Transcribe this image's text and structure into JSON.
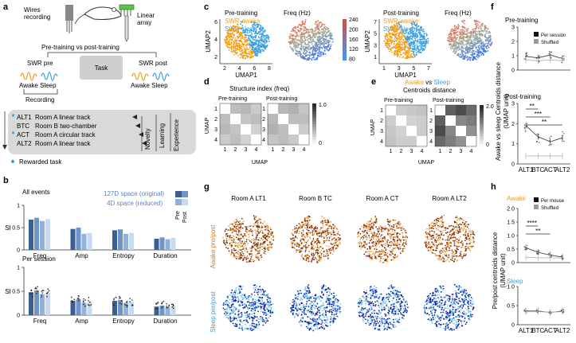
{
  "panel_labels": [
    "a",
    "b",
    "c",
    "d",
    "e",
    "f",
    "g",
    "h"
  ],
  "panel_a": {
    "wires_recording": "Wires\nrecording",
    "linear_array": "Linear\narray",
    "comparison": "Pre-training vs post-training",
    "swr_pre": "SWR pre",
    "swr_post": "SWR post",
    "task": "Task",
    "awake": "Awake",
    "sleep": "Sleep",
    "recording": "Recording",
    "sessions": [
      {
        "code": "ALT1",
        "desc": "Room A  linear track"
      },
      {
        "code": "BTC",
        "desc": "Room B two-chamber"
      },
      {
        "code": "ACT",
        "desc": "Room A circular track"
      },
      {
        "code": "ALT2",
        "desc": "Room A linear track"
      }
    ],
    "novelty": "Novelty",
    "learning": "Learning",
    "experience": "Experience",
    "rewarded": "Rewarded task"
  },
  "panel_b": {
    "all_events": "All events",
    "per_session": "Per session",
    "legend_127": "127D space (original)",
    "legend_4": "4D space (reduced)",
    "pre": "Pre",
    "post": "Post",
    "ylabel": "SI",
    "colors": {
      "orig_pre": "#3a5f95",
      "orig_post": "#6f95c8",
      "red_pre": "#8eb2dc",
      "red_post": "#c8daf1"
    }
  },
  "panel_c": {
    "titles": [
      "Pre-training",
      "Post-training"
    ],
    "swr_awake": "SWR-awake",
    "swr_sleep": "SWR-sleep",
    "freq": "Freq (Hz)",
    "xlabel": "UMAP1",
    "ylabel": "UMAP2",
    "colorbar_ticks": [
      "240",
      "200",
      "160",
      "120",
      "80"
    ],
    "x_ticks_pre": [
      "2",
      "4",
      "6",
      "8"
    ],
    "y_ticks_pre": [
      "2",
      "4",
      "6"
    ],
    "x_ticks_post": [
      "1",
      "3",
      "5",
      "7"
    ],
    "y_ticks_post": [
      "1",
      "3",
      "5",
      "7"
    ]
  },
  "panel_d": {
    "title": "Structure index (freq)",
    "sub_pre": "Pre-training",
    "sub_post": "Post-training",
    "axis": "UMAP",
    "ticks": [
      "1",
      "2",
      "3",
      "4"
    ],
    "cbar": [
      "1.0",
      "0"
    ]
  },
  "panel_e": {
    "awake": "Awake",
    "vs": " vs ",
    "sleep": "Sleep",
    "title": "Centroids distance",
    "sub_pre": "Pre-training",
    "sub_post": "Post-training",
    "axis": "UMAP",
    "ticks": [
      "1",
      "2",
      "3",
      "4"
    ],
    "cbar": [
      "2.0",
      "0"
    ]
  },
  "panel_f": {
    "pre_title": "Pre-training",
    "post_title": "Post-training",
    "legend_session": "Per session",
    "legend_shuffled": "Shuffled",
    "ylabel": "Awake vs sleep   Centroids distance",
    "yunit": "(UMAP unit)",
    "yticks": [
      "0",
      "1",
      "2",
      "3"
    ],
    "xticks": [
      "ALT1",
      "BTC",
      "ACT",
      "ALT2"
    ],
    "sig": [
      "**",
      "***",
      "**"
    ]
  },
  "panel_g": {
    "rooms": [
      "Room A LT1",
      "Room B TC",
      "Room A CT",
      "Room A LT2"
    ],
    "awake_label": "Awake pre/post",
    "sleep_label": "Sleep pre/post"
  },
  "panel_h": {
    "awake": "Awake",
    "sleep": "Sleep",
    "legend_mouse": "Per mouse",
    "legend_shuffled": "Shuffled",
    "ylabel": "Pre/post centroids distance",
    "yunit": "(UMAP unit)",
    "yticks_awake": [
      "0",
      "0.5",
      "1.0",
      "1.5",
      "2.0"
    ],
    "yticks_sleep": [
      "0",
      "0.5",
      "1.0"
    ],
    "xticks": [
      "ALT1",
      "BTC",
      "ACT",
      "ALT2"
    ],
    "sig": [
      "****",
      "**"
    ]
  },
  "chart_data": [
    {
      "type": "bar",
      "id": "b-all-events",
      "title": "All events",
      "ylabel": "SI",
      "ylim": [
        0,
        1
      ],
      "categories": [
        "Freq",
        "Amp",
        "Entropy",
        "Duration"
      ],
      "series": [
        {
          "name": "127D pre",
          "values": [
            0.68,
            0.47,
            0.44,
            0.25
          ]
        },
        {
          "name": "127D post",
          "values": [
            0.72,
            0.5,
            0.46,
            0.28
          ]
        },
        {
          "name": "4D pre",
          "values": [
            0.65,
            0.36,
            0.36,
            0.24
          ]
        },
        {
          "name": "4D post",
          "values": [
            0.69,
            0.38,
            0.38,
            0.27
          ]
        }
      ]
    },
    {
      "type": "bar",
      "id": "b-per-session",
      "title": "Per session",
      "ylabel": "SI",
      "ylim": [
        0,
        1
      ],
      "categories": [
        "Freq",
        "Amp",
        "Entropy",
        "Duration"
      ],
      "series": [
        {
          "name": "127D pre",
          "values": [
            0.48,
            0.3,
            0.3,
            0.18
          ]
        },
        {
          "name": "127D post",
          "values": [
            0.52,
            0.33,
            0.32,
            0.2
          ]
        },
        {
          "name": "4D pre",
          "values": [
            0.44,
            0.26,
            0.26,
            0.16
          ]
        },
        {
          "name": "4D post",
          "values": [
            0.47,
            0.28,
            0.28,
            0.18
          ]
        }
      ]
    },
    {
      "type": "line",
      "id": "f-pre",
      "title": "Pre-training",
      "ylim": [
        0,
        3
      ],
      "categories": [
        "ALT1",
        "BTC",
        "ACT",
        "ALT2"
      ],
      "series": [
        {
          "name": "Per session",
          "values": [
            0.95,
            0.85,
            1.05,
            0.8
          ]
        },
        {
          "name": "Shuffled",
          "values": [
            0.7,
            0.65,
            0.7,
            0.65
          ]
        }
      ]
    },
    {
      "type": "line",
      "id": "f-post",
      "title": "Post-training",
      "ylim": [
        0,
        3
      ],
      "categories": [
        "ALT1",
        "BTC",
        "ACT",
        "ALT2"
      ],
      "series": [
        {
          "name": "Per session",
          "values": [
            1.9,
            1.35,
            1.1,
            1.3
          ]
        },
        {
          "name": "Shuffled",
          "values": [
            0.4,
            0.4,
            0.4,
            0.4
          ]
        }
      ]
    },
    {
      "type": "line",
      "id": "h-awake",
      "title": "Awake",
      "ylim": [
        0,
        2
      ],
      "categories": [
        "ALT1",
        "BTC",
        "ACT",
        "ALT2"
      ],
      "series": [
        {
          "name": "Per mouse",
          "values": [
            0.55,
            0.38,
            0.28,
            0.2
          ]
        },
        {
          "name": "Shuffled",
          "values": [
            0.2,
            0.18,
            0.18,
            0.17
          ]
        }
      ]
    },
    {
      "type": "line",
      "id": "h-sleep",
      "title": "Sleep",
      "ylim": [
        0,
        1
      ],
      "categories": [
        "ALT1",
        "BTC",
        "ACT",
        "ALT2"
      ],
      "series": [
        {
          "name": "Per mouse",
          "values": [
            0.36,
            0.36,
            0.32,
            0.36
          ]
        },
        {
          "name": "Shuffled",
          "values": [
            0.34,
            0.34,
            0.33,
            0.34
          ]
        }
      ]
    },
    {
      "type": "heatmap",
      "id": "d-pre",
      "title": "Pre-training",
      "range": [
        0,
        1
      ],
      "values": [
        [
          1,
          0.5,
          0.55,
          0.4
        ],
        [
          0.5,
          1,
          0.45,
          0.5
        ],
        [
          0.55,
          0.45,
          1,
          0.35
        ],
        [
          0.4,
          0.5,
          0.35,
          1
        ]
      ]
    },
    {
      "type": "heatmap",
      "id": "d-post",
      "title": "Post-training",
      "range": [
        0,
        1
      ],
      "values": [
        [
          1,
          0.55,
          0.6,
          0.45
        ],
        [
          0.55,
          1,
          0.5,
          0.5
        ],
        [
          0.6,
          0.5,
          1,
          0.4
        ],
        [
          0.45,
          0.5,
          0.4,
          1
        ]
      ]
    },
    {
      "type": "heatmap",
      "id": "e-pre",
      "title": "Pre-training",
      "range": [
        0,
        2
      ],
      "values": [
        [
          0,
          0.5,
          0.55,
          0.6
        ],
        [
          0.5,
          0,
          0.45,
          0.5
        ],
        [
          0.55,
          0.45,
          0,
          0.5
        ],
        [
          0.6,
          0.5,
          0.5,
          0
        ]
      ]
    },
    {
      "type": "heatmap",
      "id": "e-post",
      "title": "Post-training",
      "range": [
        0,
        2
      ],
      "values": [
        [
          0,
          1.6,
          1.8,
          1.5
        ],
        [
          1.6,
          0,
          1.2,
          1.3
        ],
        [
          1.8,
          1.2,
          0,
          1.1
        ],
        [
          1.5,
          1.3,
          1.1,
          0
        ]
      ]
    }
  ]
}
